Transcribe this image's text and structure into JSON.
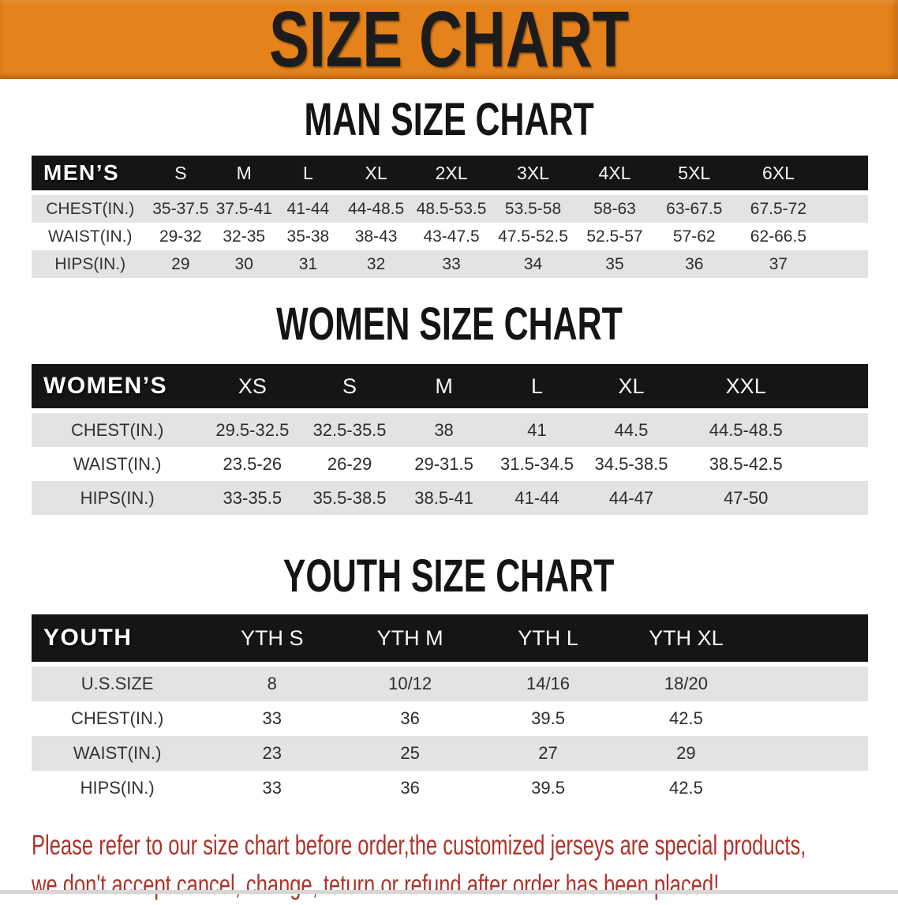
{
  "banner": {
    "title": "SIZE CHART",
    "background_color": "#e5821b",
    "text_color": "#1c1c1c"
  },
  "men": {
    "heading": "MAN SIZE CHART",
    "table": {
      "header_label": "MEN’S",
      "columns": [
        "S",
        "M",
        "L",
        "XL",
        "2XL",
        "3XL",
        "4XL",
        "5XL",
        "6XL"
      ],
      "rows": [
        {
          "label": "CHEST(IN.)",
          "values": [
            "35-37.5",
            "37.5-41",
            "41-44",
            "44-48.5",
            "48.5-53.5",
            "53.5-58",
            "58-63",
            "63-67.5",
            "67.5-72"
          ]
        },
        {
          "label": "WAIST(IN.)",
          "values": [
            "29-32",
            "32-35",
            "35-38",
            "38-43",
            "43-47.5",
            "47.5-52.5",
            "52.5-57",
            "57-62",
            "62-66.5"
          ]
        },
        {
          "label": "HIPS(IN.)",
          "values": [
            "29",
            "30",
            "31",
            "32",
            "33",
            "34",
            "35",
            "36",
            "37"
          ]
        }
      ]
    }
  },
  "women": {
    "heading": "WOMEN SIZE CHART",
    "table": {
      "header_label": "WOMEN’S",
      "columns": [
        "XS",
        "S",
        "M",
        "L",
        "XL",
        "XXL"
      ],
      "rows": [
        {
          "label": "CHEST(IN.)",
          "values": [
            "29.5-32.5",
            "32.5-35.5",
            "38",
            "41",
            "44.5",
            "44.5-48.5"
          ]
        },
        {
          "label": "WAIST(IN.)",
          "values": [
            "23.5-26",
            "26-29",
            "29-31.5",
            "31.5-34.5",
            "34.5-38.5",
            "38.5-42.5"
          ]
        },
        {
          "label": "HIPS(IN.)",
          "values": [
            "33-35.5",
            "35.5-38.5",
            "38.5-41",
            "41-44",
            "44-47",
            "47-50"
          ]
        }
      ]
    }
  },
  "youth": {
    "heading": "YOUTH SIZE CHART",
    "table": {
      "header_label": "YOUTH",
      "columns": [
        "YTH S",
        "YTH M",
        "YTH L",
        "YTH XL"
      ],
      "rows": [
        {
          "label": "U.S.SIZE",
          "values": [
            "8",
            "10/12",
            "14/16",
            "18/20"
          ]
        },
        {
          "label": "CHEST(IN.)",
          "values": [
            "33",
            "36",
            "39.5",
            "42.5"
          ]
        },
        {
          "label": "WAIST(IN.)",
          "values": [
            "23",
            "25",
            "27",
            "29"
          ]
        },
        {
          "label": "HIPS(IN.)",
          "values": [
            "33",
            "36",
            "39.5",
            "42.5"
          ]
        }
      ]
    }
  },
  "disclaimer": {
    "line1": "Please refer to our size chart before order,the customized jerseys are special products,",
    "line2": "we don't accept cancel, change, teturn or refund after order has been placed!",
    "text_color": "#ae332a"
  },
  "colors": {
    "table_header_bar": "#151515",
    "table_alt_row": "#e3e3e3",
    "table_text": "#2d2d2d"
  }
}
